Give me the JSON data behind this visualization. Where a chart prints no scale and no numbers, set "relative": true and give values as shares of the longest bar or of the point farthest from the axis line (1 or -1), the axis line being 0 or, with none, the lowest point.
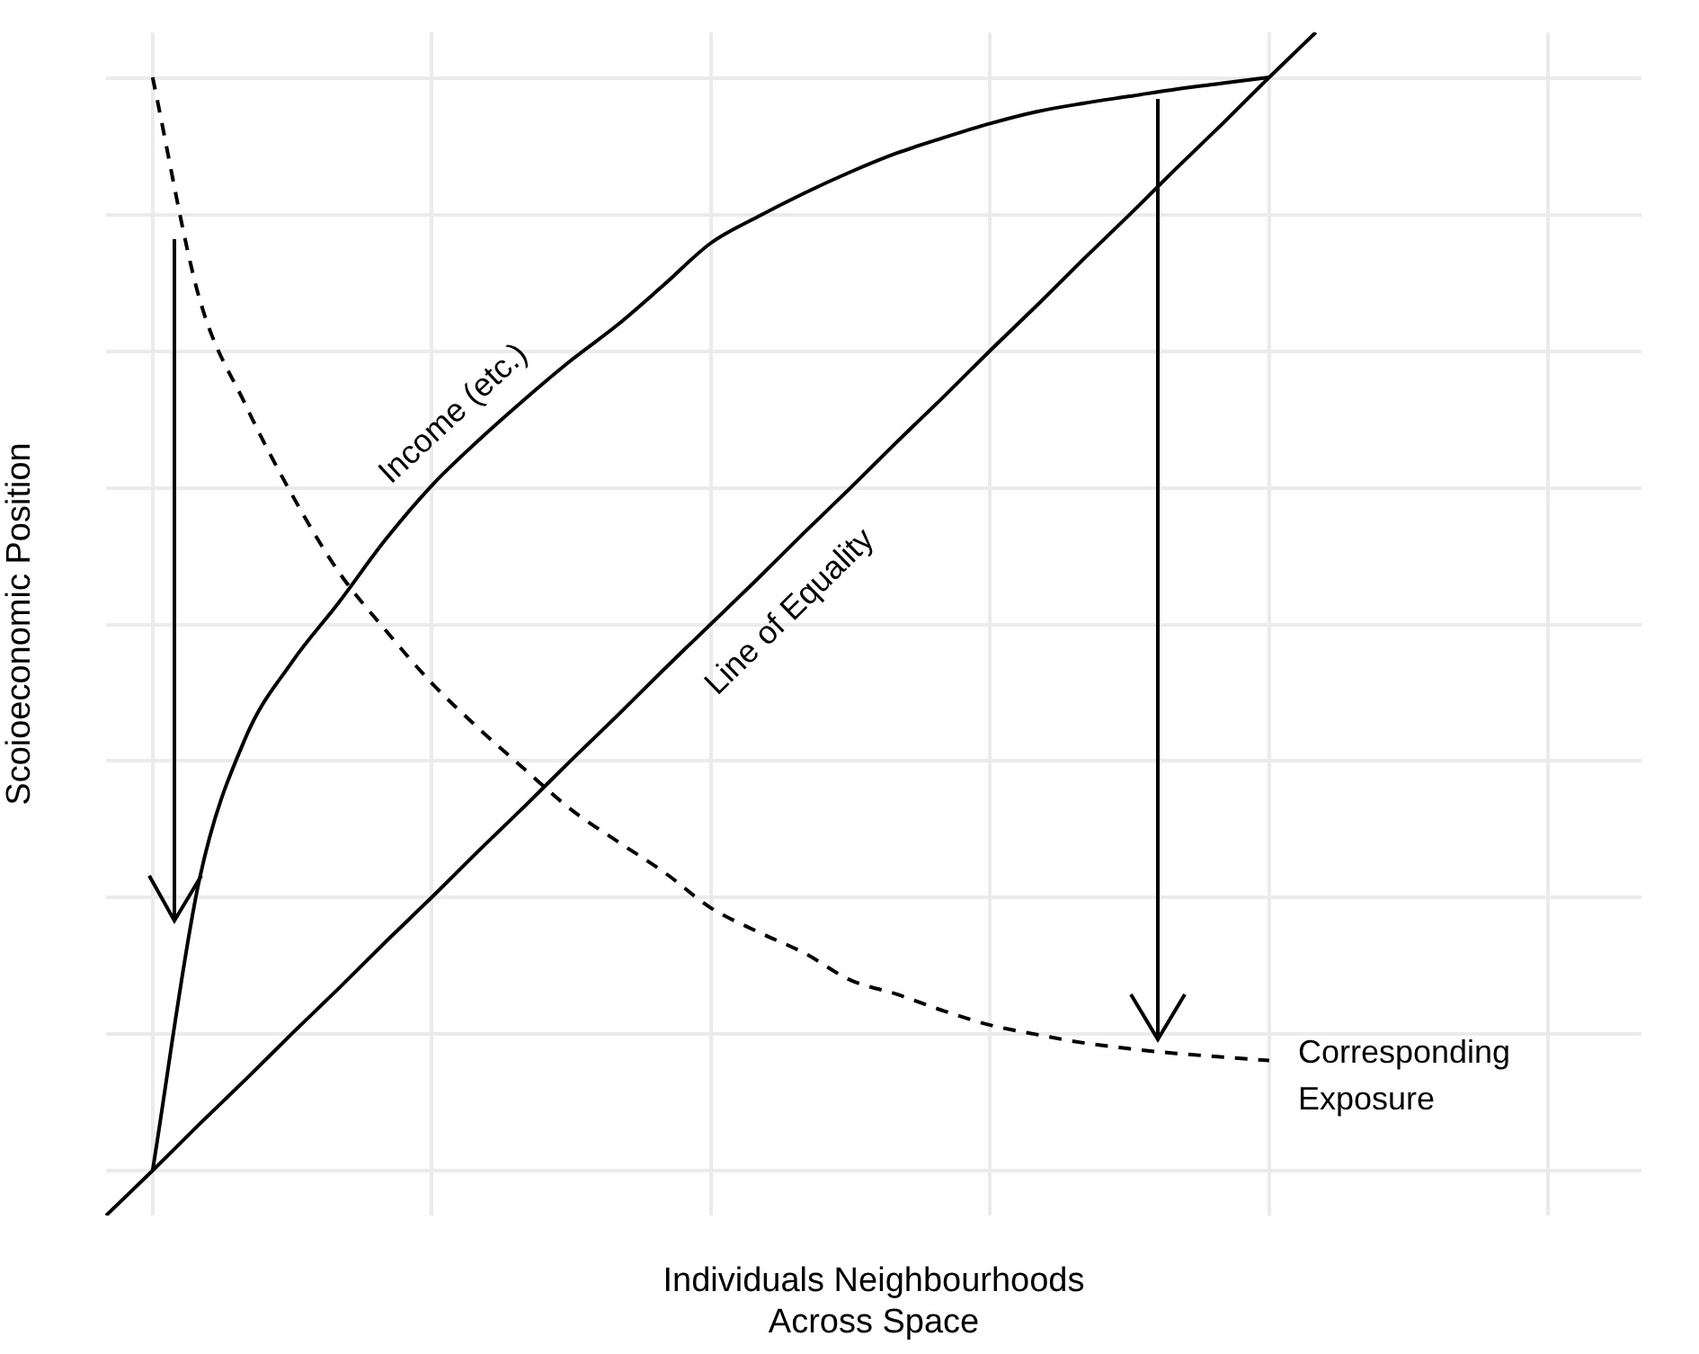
{
  "chart_data": {
    "type": "line",
    "relative": true,
    "xlabel": "Individuals Neighbourhoods\nAcross Space",
    "ylabel": "Scoioeconomic Position",
    "grid": true,
    "legend": false,
    "marker": "none",
    "categories": [
      null,
      null,
      null,
      null,
      null,
      null,
      null,
      null,
      null,
      null,
      null,
      null,
      null,
      null,
      null,
      null,
      null,
      null,
      null,
      null,
      null,
      null,
      null,
      null,
      null,
      null,
      null,
      null,
      null,
      null,
      null,
      null,
      null,
      null
    ],
    "series": [
      {
        "name": "Income (etc.)",
        "color": "#000000",
        "values": [
          null,
          0.038,
          0.283,
          0.404,
          0.468,
          0.518,
          0.571,
          0.617,
          0.655,
          0.69,
          0.723,
          0.753,
          0.787,
          0.822,
          0.844,
          0.864,
          0.882,
          0.898,
          0.911,
          0.923,
          0.933,
          0.94,
          0.946,
          0.952,
          0.957,
          0.962,
          null,
          null,
          null,
          null,
          null,
          null,
          null,
          null
        ]
      },
      {
        "name": "Line of Equality",
        "color": "#000000",
        "values": [
          0,
          0.038,
          0.077,
          0.115,
          0.154,
          0.192,
          0.231,
          0.269,
          0.308,
          0.346,
          0.385,
          0.423,
          0.462,
          0.5,
          0.538,
          0.577,
          0.615,
          0.654,
          0.692,
          0.731,
          0.769,
          0.808,
          0.846,
          0.885,
          0.923,
          0.962,
          1,
          null,
          null,
          null,
          null,
          null,
          null,
          null
        ]
      },
      {
        "name": "Corresponding Exposure",
        "color": "#000000",
        "line_style": "dashed",
        "values": [
          null,
          0.962,
          0.776,
          0.685,
          0.609,
          0.544,
          0.495,
          0.45,
          0.412,
          0.377,
          0.343,
          0.316,
          0.29,
          0.26,
          0.24,
          0.222,
          0.199,
          0.187,
          0.173,
          0.161,
          0.153,
          0.146,
          0.141,
          0.137,
          0.134,
          0.131,
          null,
          null,
          null,
          null,
          null,
          null,
          null,
          null
        ]
      }
    ]
  }
}
